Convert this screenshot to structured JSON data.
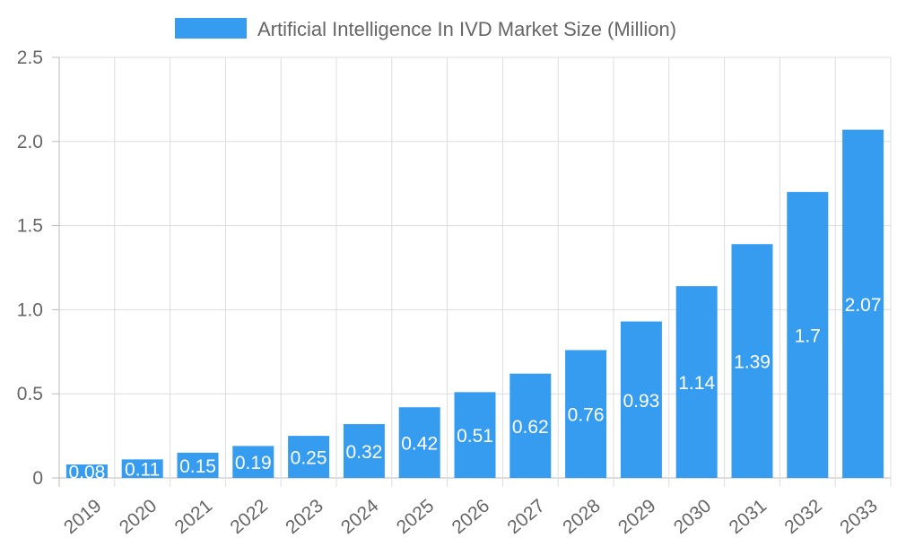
{
  "chart_data": {
    "type": "bar",
    "categories": [
      "2019",
      "2020",
      "2021",
      "2022",
      "2023",
      "2024",
      "2025",
      "2026",
      "2027",
      "2028",
      "2029",
      "2030",
      "2031",
      "2032",
      "2033"
    ],
    "series": [
      {
        "name": "Artificial Intelligence In IVD Market Size (Million)",
        "values": [
          0.08,
          0.11,
          0.15,
          0.19,
          0.25,
          0.32,
          0.42,
          0.51,
          0.62,
          0.76,
          0.93,
          1.14,
          1.39,
          1.7,
          2.07
        ],
        "color": "#369cf0"
      }
    ],
    "ylim": [
      0,
      2.5
    ],
    "yticks": [
      "0",
      "0.5",
      "1.0",
      "1.5",
      "2.0",
      "2.5"
    ],
    "grid": true,
    "legend_position": "top",
    "data_labels": true
  }
}
